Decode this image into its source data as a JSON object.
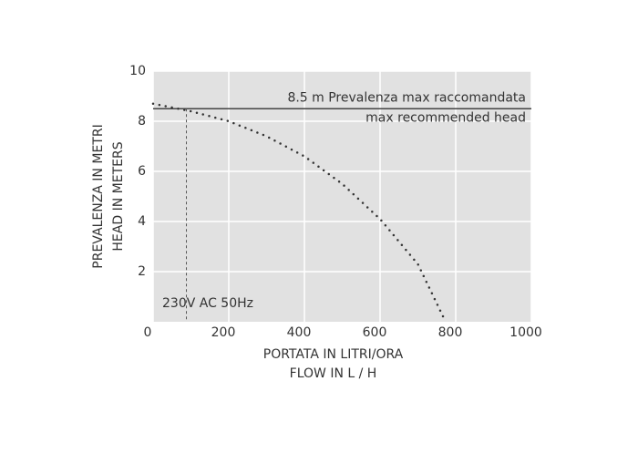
{
  "chart_data": {
    "type": "line",
    "x_label": [
      "PORTATA IN LITRI/ORA",
      "FLOW IN L / H"
    ],
    "y_label": [
      "PREVALENZA IN METRI",
      "HEAD IN METERS"
    ],
    "x": [
      0,
      100,
      200,
      300,
      400,
      500,
      600,
      700,
      770
    ],
    "series": [
      {
        "name": "230V AC 50Hz",
        "color": "#333333",
        "values": [
          8.7,
          8.4,
          8.0,
          7.4,
          6.6,
          5.5,
          4.1,
          2.3,
          0.1
        ]
      }
    ],
    "operating_point_x": 88,
    "reference_line": {
      "value": 8.5,
      "label": [
        "8.5 m Prevalenza max raccomandata",
        "max recommended head"
      ]
    },
    "xlim": [
      0,
      1000
    ],
    "xticks": [
      0,
      200,
      400,
      600,
      800,
      1000
    ],
    "ylim": [
      0,
      10
    ],
    "yticks": [
      2,
      4,
      6,
      8,
      10
    ],
    "grid": true,
    "background": "#e1e1e1"
  }
}
